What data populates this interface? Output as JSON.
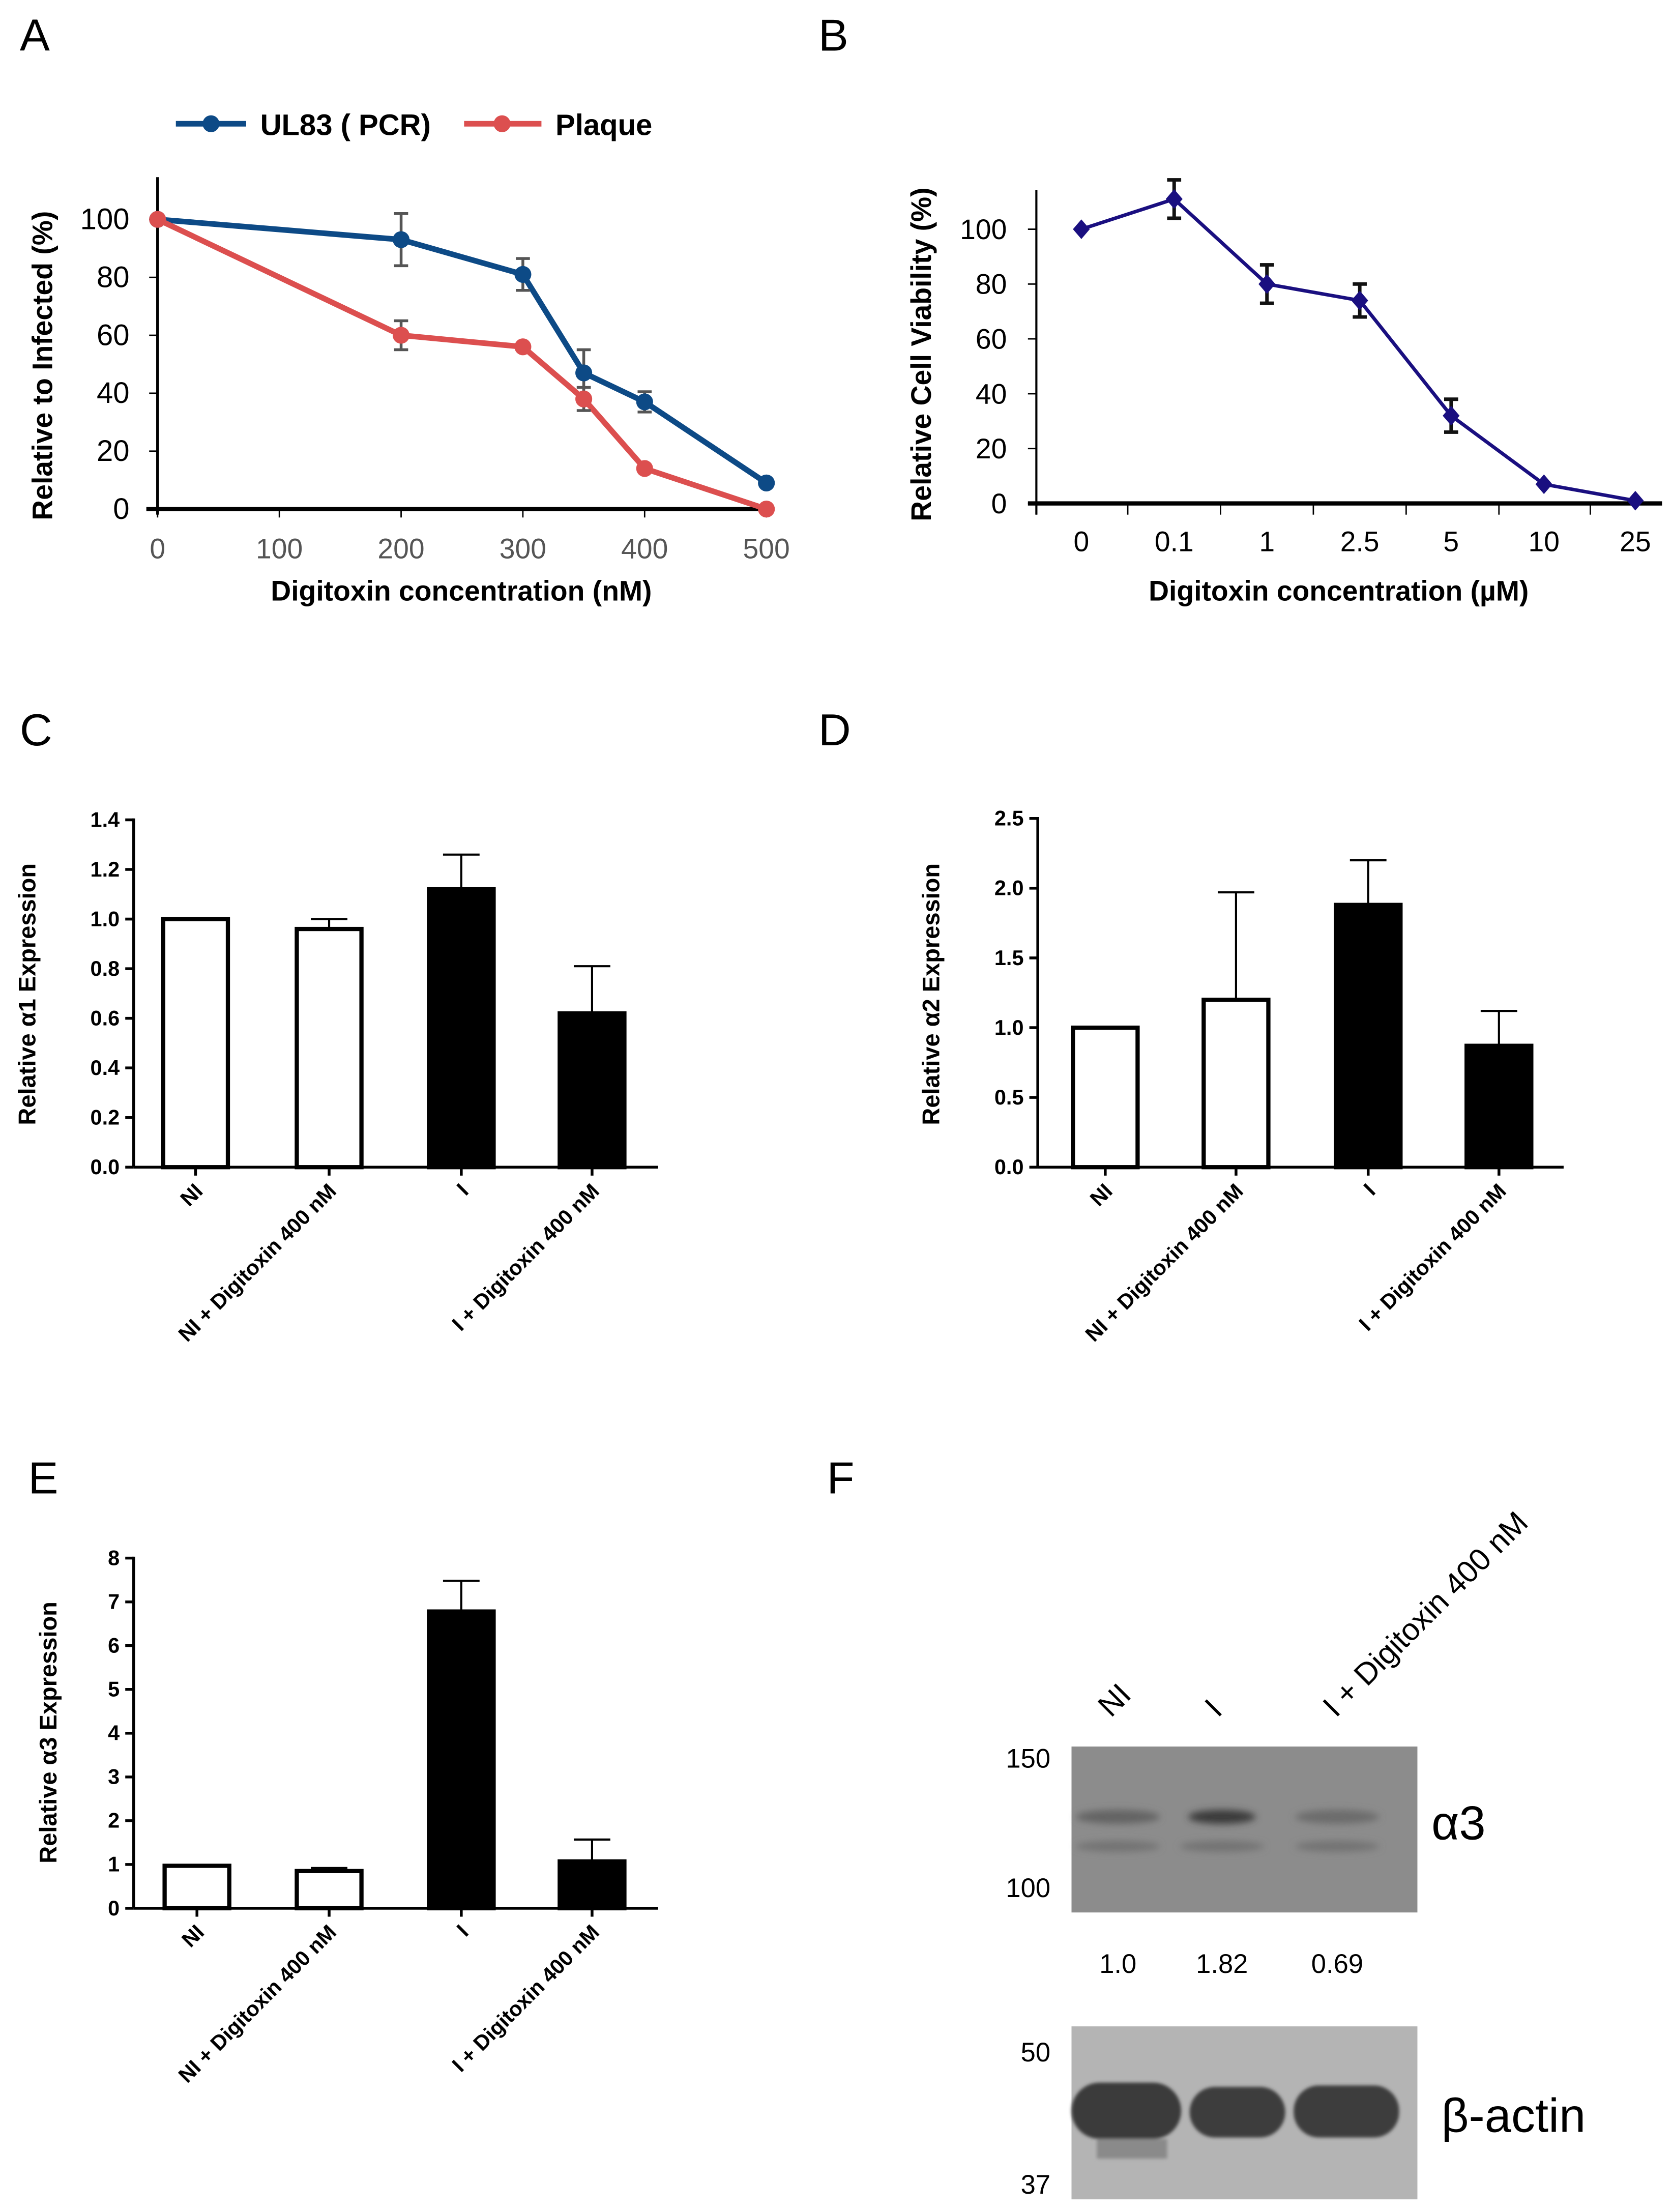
{
  "panels": {
    "A": "A",
    "B": "B",
    "C": "C",
    "D": "D",
    "E": "E",
    "F": "F"
  },
  "chart_data": [
    {
      "id": "A",
      "type": "line",
      "title": "",
      "xlabel": "Digitoxin concentration  (nM)",
      "ylabel": "Relative to Infected  (%)",
      "xlim": [
        0,
        500
      ],
      "ylim": [
        0,
        110
      ],
      "xticks": [
        0,
        100,
        200,
        300,
        400,
        500
      ],
      "yticks": [
        0,
        20,
        40,
        60,
        80,
        100
      ],
      "legend_position": "top",
      "series": [
        {
          "name": "UL83 ( PCR)",
          "color": "#0d4a86",
          "x": [
            0,
            200,
            300,
            350,
            400,
            500
          ],
          "y": [
            100,
            93,
            81,
            47,
            37,
            9
          ],
          "err": [
            0,
            9,
            5.5,
            8,
            3.5,
            0
          ]
        },
        {
          "name": "Plaque",
          "color": "#dc4f4f",
          "x": [
            0,
            200,
            300,
            350,
            400,
            500
          ],
          "y": [
            100,
            60,
            56,
            38,
            14,
            0
          ],
          "err": [
            0,
            5,
            0,
            4,
            0,
            0
          ]
        }
      ]
    },
    {
      "id": "B",
      "type": "line",
      "xlabel": "Digitoxin concentration  (µM)",
      "ylabel": "Relative Cell Viability  (%)",
      "ylim": [
        0,
        115
      ],
      "categories": [
        "0",
        "0.1",
        "1",
        "2.5",
        "5",
        "10",
        "25"
      ],
      "yticks": [
        0,
        20,
        40,
        60,
        80,
        100
      ],
      "series": [
        {
          "name": "Cell viability",
          "color": "#1a0f80",
          "y": [
            100,
            111,
            80,
            74,
            32,
            7,
            1
          ],
          "err": [
            0,
            7,
            7,
            6,
            6,
            0,
            0
          ]
        }
      ]
    },
    {
      "id": "C",
      "type": "bar",
      "ylabel": "Relative α1 Expression",
      "ylim": [
        0,
        1.4
      ],
      "yticks": [
        "0.0",
        "0.2",
        "0.4",
        "0.6",
        "0.8",
        "1.0",
        "1.2",
        "1.4"
      ],
      "categories": [
        "NI",
        "NI + Digitoxin 400 nM",
        "I",
        "I + Digitoxin 400 nM"
      ],
      "values": [
        1.0,
        0.96,
        1.12,
        0.62
      ],
      "err": [
        0.0,
        0.04,
        0.14,
        0.19
      ],
      "fill": [
        "open",
        "open",
        "solid",
        "solid"
      ]
    },
    {
      "id": "D",
      "type": "bar",
      "ylabel": "Relative α2 Expression",
      "ylim": [
        0,
        2.5
      ],
      "yticks": [
        "0.0",
        "0.5",
        "1.0",
        "1.5",
        "2.0",
        "2.5"
      ],
      "categories": [
        "NI",
        "NI + Digitoxin 400 nM",
        "I",
        "I + Digitoxin 400 nM"
      ],
      "values": [
        1.0,
        1.2,
        1.88,
        0.87
      ],
      "err": [
        0.0,
        0.77,
        0.32,
        0.25
      ],
      "fill": [
        "open",
        "open",
        "solid",
        "solid"
      ]
    },
    {
      "id": "E",
      "type": "bar",
      "ylabel": "Relative α3 Expression",
      "ylim": [
        0,
        8
      ],
      "yticks": [
        "0",
        "1",
        "2",
        "3",
        "4",
        "5",
        "6",
        "7",
        "8"
      ],
      "categories": [
        "NI",
        "NI + Digitoxin 400 nM",
        "I",
        "I + Digitoxin 400 nM"
      ],
      "values": [
        0.97,
        0.85,
        6.78,
        1.07
      ],
      "err": [
        0.0,
        0.07,
        0.7,
        0.5
      ],
      "fill": [
        "open",
        "open",
        "solid",
        "solid"
      ]
    }
  ],
  "blot": {
    "lanes": [
      "NI",
      "I",
      "I + Digitoxin 400 nM"
    ],
    "top_label": "α3",
    "bottom_label": "β-actin",
    "top_markers": [
      "150",
      "100"
    ],
    "bottom_markers": [
      "50",
      "37"
    ],
    "quantification": [
      "1.0",
      "1.82",
      "0.69"
    ],
    "alpha3_band_intensity": [
      0.35,
      0.8,
      0.25
    ]
  }
}
